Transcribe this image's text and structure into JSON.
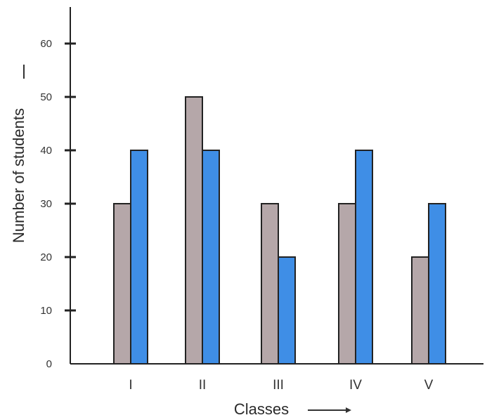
{
  "chart_data": {
    "type": "bar",
    "categories": [
      "I",
      "II",
      "III",
      "IV",
      "V"
    ],
    "series": [
      {
        "values": [
          30,
          50,
          30,
          30,
          20
        ],
        "color": "#b5a7a9"
      },
      {
        "values": [
          40,
          40,
          20,
          40,
          30
        ],
        "color": "#3f8ee6"
      }
    ],
    "ylim": [
      0,
      60
    ],
    "yticks": [
      "0",
      "10",
      "20",
      "30",
      "40",
      "50",
      "60"
    ],
    "xlabel": "Classes",
    "ylabel": "Number of students",
    "grid": false
  }
}
